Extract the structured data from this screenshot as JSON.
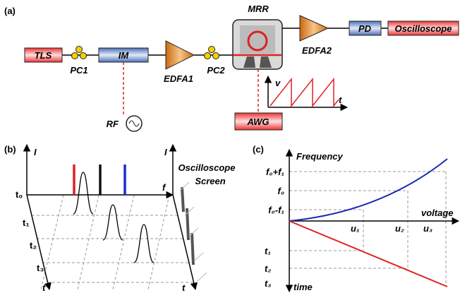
{
  "panel_a": {
    "label": "(a)",
    "tls": "TLS",
    "pc1": "PC1",
    "im": "IM",
    "edfa1": "EDFA1",
    "pc2": "PC2",
    "mrr": "MRR",
    "edfa2": "EDFA2",
    "pd": "PD",
    "oscilloscope": "Oscilloscope",
    "rf": "RF",
    "awg": "AWG",
    "inset_y": "v",
    "inset_x": "t"
  },
  "panel_b": {
    "label": "(b)",
    "intensity_axis": "I",
    "time_zero": "t₀",
    "time_1": "t₁",
    "time_2": "t₂",
    "time_3": "t₃",
    "time_axis": "t",
    "screen_intensity_axis": "I",
    "frequency_axis": "f",
    "screen_title_1": "Oscilloscope",
    "screen_title_2": "Screen",
    "screen_time_axis": "t"
  },
  "panel_c": {
    "label": "(c)",
    "y_axis": "Frequency",
    "f_high": "f₀+f₁",
    "f_center": "f₀",
    "f_low": "f₀-f₁",
    "x_axis": "voltage",
    "u1": "u₁",
    "u2": "u₂",
    "u3": "u₃",
    "t1": "t₁",
    "t2": "t₂",
    "t3": "t₃",
    "time_axis": "time"
  }
}
